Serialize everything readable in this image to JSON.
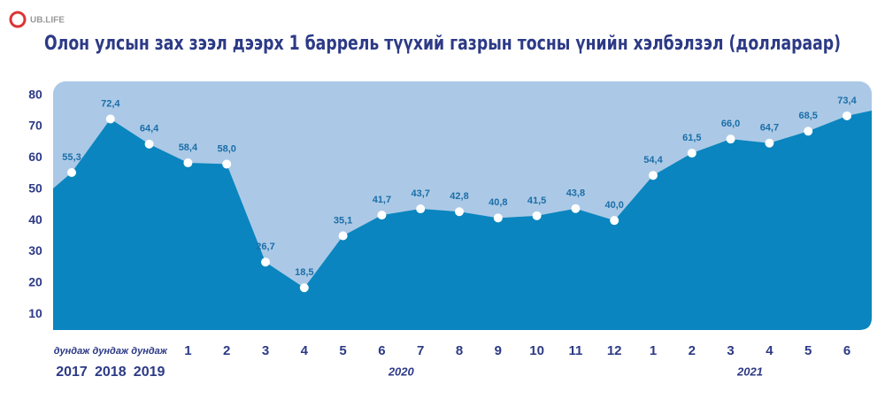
{
  "logo": "UB.LIFE",
  "chart_data": {
    "type": "area",
    "title": "Олон улсын зах зээл дээрх 1 баррель түүхий газрын тосны үнийн хэлбэлзэл (доллараар)",
    "categories": [
      "дундаж",
      "дундаж",
      "дундаж",
      "1",
      "2",
      "3",
      "4",
      "5",
      "6",
      "7",
      "8",
      "9",
      "10",
      "11",
      "12",
      "1",
      "2",
      "3",
      "4",
      "5",
      "6"
    ],
    "x_groups": [
      "2017",
      "2018",
      "2019",
      "2020",
      "2021"
    ],
    "values": [
      55.3,
      72.4,
      64.4,
      58.4,
      58.0,
      26.7,
      18.5,
      35.1,
      41.7,
      43.7,
      42.8,
      40.8,
      41.5,
      43.8,
      40.0,
      54.4,
      61.5,
      66.0,
      64.7,
      68.5,
      73.4
    ],
    "value_labels": [
      "55,3",
      "72,4",
      "64,4",
      "58,4",
      "58,0",
      "26,7",
      "18,5",
      "35,1",
      "41,7",
      "43,7",
      "42,8",
      "40,8",
      "41,5",
      "43,8",
      "40,0",
      "54,4",
      "61,5",
      "66,0",
      "64,7",
      "68,5",
      "73,4"
    ],
    "color": "#0a85bf",
    "background_color": "#abc9e6",
    "ylim": [
      5,
      83
    ],
    "yticks": [
      10,
      20,
      30,
      40,
      50,
      60,
      70,
      80
    ]
  }
}
